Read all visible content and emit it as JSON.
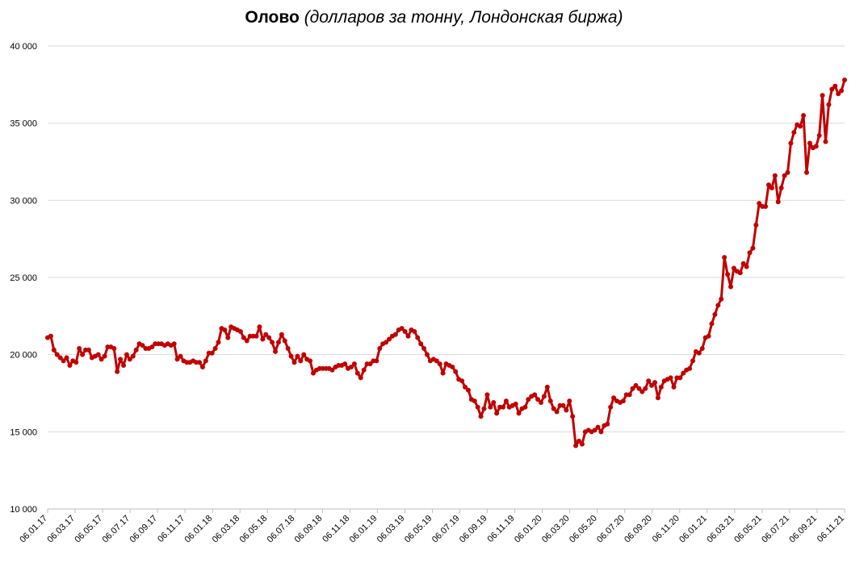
{
  "chart_data": {
    "type": "line",
    "title": "Олово",
    "subtitle": "(долларов за тонну, Лондонская биржа)",
    "xlabel": "",
    "ylabel": "",
    "ylim": [
      10000,
      40000
    ],
    "y_ticks": [
      10000,
      15000,
      20000,
      25000,
      30000,
      35000,
      40000
    ],
    "y_tick_labels": [
      "10 000",
      "15 000",
      "20 000",
      "25 000",
      "30 000",
      "35 000",
      "40 000"
    ],
    "x_tick_labels": [
      "06.01.17",
      "06.03.17",
      "06.05.17",
      "06.07.17",
      "06.09.17",
      "06.11.17",
      "06.01.18",
      "06.03.18",
      "06.05.18",
      "06.07.18",
      "06.09.18",
      "06.11.18",
      "06.01.19",
      "06.03.19",
      "06.05.19",
      "06.07.19",
      "06.09.19",
      "06.11.19",
      "06.01.20",
      "06.03.20",
      "06.05.20",
      "06.07.20",
      "06.09.20",
      "06.11.20",
      "06.01.21",
      "06.03.21",
      "06.05.21",
      "06.07.21",
      "06.09.21",
      "06.11.21"
    ],
    "grid": "horizontal",
    "legend": "none",
    "colors": {
      "line": "#c00000",
      "grid": "#d9d9d9",
      "axis": "#bfbfbf",
      "text": "#000000"
    },
    "series": [
      {
        "values": [
          21100,
          21200,
          20300,
          20000,
          19800,
          19600,
          19800,
          19300,
          19600,
          19500,
          20400,
          20000,
          20300,
          20300,
          19800,
          19900,
          20000,
          19700,
          19900,
          20500,
          20500,
          20400,
          18900,
          19700,
          19300,
          20000,
          19700,
          19900,
          20300,
          20700,
          20600,
          20400,
          20400,
          20500,
          20700,
          20700,
          20700,
          20600,
          20700,
          20600,
          20700,
          19700,
          19900,
          19600,
          19500,
          19500,
          19600,
          19500,
          19500,
          19200,
          19600,
          20100,
          20100,
          20400,
          20800,
          21700,
          21600,
          21100,
          21800,
          21700,
          21600,
          21500,
          21100,
          20900,
          21200,
          21200,
          21200,
          21800,
          21000,
          21300,
          21100,
          20800,
          20200,
          20800,
          21300,
          20900,
          20400,
          19900,
          19500,
          19900,
          19600,
          20000,
          19700,
          19600,
          18800,
          19000,
          19100,
          19100,
          19100,
          19100,
          19000,
          19200,
          19300,
          19300,
          19400,
          19100,
          19200,
          19400,
          18800,
          18500,
          19000,
          19400,
          19400,
          19600,
          19600,
          20400,
          20700,
          20800,
          21000,
          21200,
          21300,
          21600,
          21700,
          21500,
          21200,
          21600,
          21500,
          21100,
          20700,
          20400,
          20000,
          19600,
          19700,
          19600,
          19400,
          18800,
          19400,
          19300,
          19200,
          18900,
          18400,
          18300,
          17900,
          17700,
          17100,
          17000,
          16600,
          16000,
          16500,
          17400,
          16600,
          16900,
          16200,
          16600,
          16600,
          17000,
          16600,
          16700,
          16800,
          16200,
          16500,
          16600,
          17100,
          17300,
          17400,
          17100,
          16900,
          17300,
          17900,
          17000,
          16500,
          16300,
          16700,
          16700,
          16400,
          17000,
          16000,
          14100,
          14400,
          14200,
          15000,
          15100,
          15000,
          15100,
          15300,
          15000,
          15400,
          15500,
          16600,
          17200,
          17000,
          16900,
          17000,
          17400,
          17400,
          17800,
          18000,
          17800,
          17600,
          17800,
          18300,
          18000,
          18200,
          17200,
          17900,
          18300,
          18400,
          18500,
          17900,
          18500,
          18500,
          18800,
          19000,
          19100,
          19600,
          20200,
          20100,
          20400,
          21100,
          21200,
          22000,
          22600,
          23200,
          23600,
          26300,
          25200,
          24400,
          25600,
          25400,
          25300,
          25900,
          25700,
          26600,
          26900,
          28400,
          29800,
          29600,
          29600,
          31000,
          30800,
          31600,
          29900,
          30800,
          31600,
          31800,
          33700,
          34400,
          34900,
          34800,
          35500,
          31800,
          33700,
          33400,
          33500,
          34200,
          36800,
          33800,
          36200,
          37200,
          37400,
          36900,
          37100,
          37800
        ]
      }
    ]
  }
}
